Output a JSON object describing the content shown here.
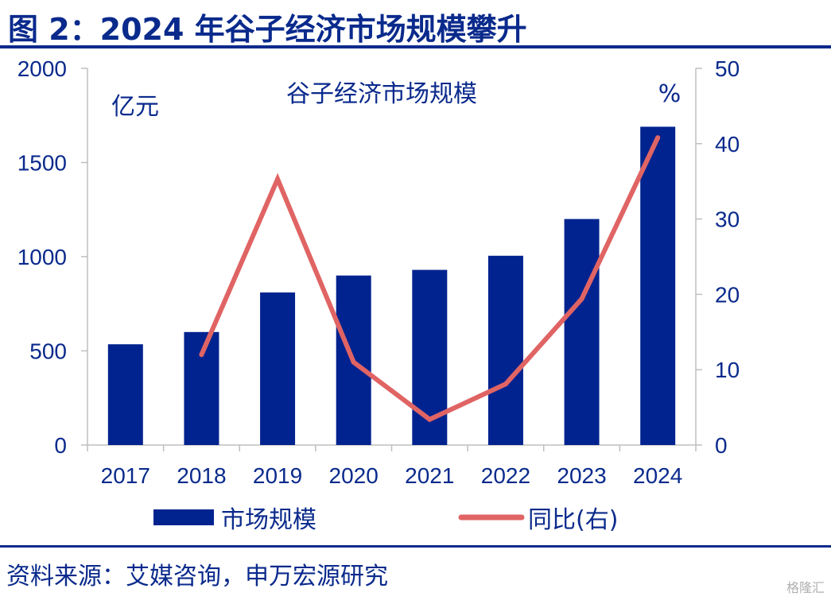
{
  "figure_title": "图 2：2024 年谷子经济市场规模攀升",
  "source": "资料来源：艾媒咨询，申万宏源研究",
  "watermark": "格隆汇",
  "chart_data": {
    "type": "bar",
    "title": "谷子经济市场规模",
    "categories": [
      "2017",
      "2018",
      "2019",
      "2020",
      "2021",
      "2022",
      "2023",
      "2024"
    ],
    "series": [
      {
        "name": "市场规模",
        "type": "bar",
        "axis": "left",
        "color": "#00238f",
        "values": [
          535,
          600,
          810,
          900,
          930,
          1005,
          1200,
          1690
        ]
      },
      {
        "name": "同比(右)",
        "type": "line",
        "axis": "right",
        "color": "#e06464",
        "values": [
          null,
          12.0,
          35.3,
          11.0,
          3.4,
          8.1,
          19.4,
          40.8
        ]
      }
    ],
    "y_left": {
      "unit_label": "亿元",
      "range": [
        0,
        2000
      ],
      "ticks": [
        0,
        500,
        1000,
        1500,
        2000
      ]
    },
    "y_right": {
      "unit_label": "%",
      "range": [
        0,
        50
      ],
      "ticks": [
        0,
        10,
        20,
        30,
        40,
        50
      ]
    },
    "grid": false,
    "legend_position": "bottom"
  }
}
